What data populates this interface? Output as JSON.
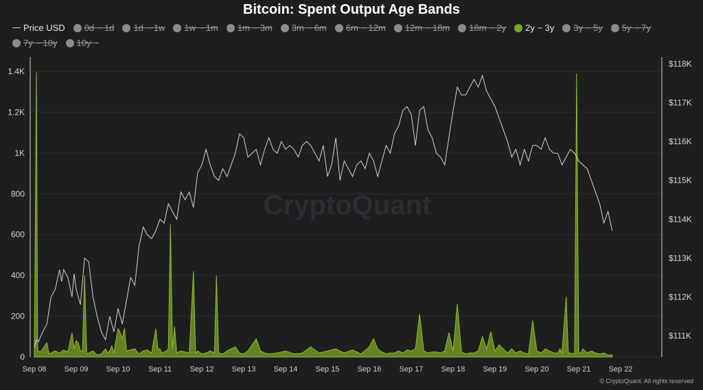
{
  "chart_data": {
    "type": "area",
    "title": "Bitcoin: Spent Output Age Bands",
    "watermark": "CryptoQuant",
    "copyright": "© CryptoQuant. All rights reserved",
    "legend_placement": "top-left",
    "legend": [
      {
        "label": "Price USD",
        "marker": "line",
        "active": true,
        "color": "#cfcfcf"
      },
      {
        "label": "0d ~ 1d",
        "marker": "dot",
        "active": false
      },
      {
        "label": "1d ~ 1w",
        "marker": "dot",
        "active": false
      },
      {
        "label": "1w ~ 1m",
        "marker": "dot",
        "active": false
      },
      {
        "label": "1m ~ 3m",
        "marker": "dot",
        "active": false
      },
      {
        "label": "3m ~ 6m",
        "marker": "dot",
        "active": false
      },
      {
        "label": "6m ~ 12m",
        "marker": "dot",
        "active": false
      },
      {
        "label": "12m ~ 18m",
        "marker": "dot",
        "active": false
      },
      {
        "label": "18m ~ 2y",
        "marker": "dot",
        "active": false
      },
      {
        "label": "2y ~ 3y",
        "marker": "dot",
        "active": true,
        "color": "#7ba428"
      },
      {
        "label": "3y ~ 5y",
        "marker": "dot",
        "active": false
      },
      {
        "label": "5y ~ 7y",
        "marker": "dot",
        "active": false
      },
      {
        "label": "7y ~ 10y",
        "marker": "dot",
        "active": false
      },
      {
        "label": "10y ~",
        "marker": "dot",
        "active": false
      }
    ],
    "x_ticks": [
      "Sep 08",
      "Sep 09",
      "Sep 10",
      "Sep 11",
      "Sep 12",
      "Sep 13",
      "Sep 14",
      "Sep 15",
      "Sep 16",
      "Sep 17",
      "Sep 18",
      "Sep 19",
      "Sep 20",
      "Sep 21",
      "Sep 22"
    ],
    "x_range_days": [
      0,
      14.1
    ],
    "y_left": {
      "range": [
        0,
        1400
      ],
      "ticks": [
        0,
        200,
        400,
        600,
        800,
        1000,
        1200,
        1400
      ],
      "tick_labels": [
        "0",
        "200",
        "400",
        "600",
        "800",
        "1K",
        "1.2K",
        "1.4K"
      ]
    },
    "y_right": {
      "range": [
        110500,
        118200
      ],
      "ticks": [
        111000,
        112000,
        113000,
        114000,
        115000,
        116000,
        117000,
        118000
      ],
      "tick_labels": [
        "$111K",
        "$112K",
        "$113K",
        "$114K",
        "$115K",
        "$116K",
        "$117K",
        "$118K"
      ]
    },
    "grid": true,
    "series": [
      {
        "name": "Price USD",
        "axis": "right",
        "color": "#d4d4d4",
        "points": [
          [
            0,
            110700
          ],
          [
            0.05,
            110900
          ],
          [
            0.1,
            110850
          ],
          [
            0.2,
            111100
          ],
          [
            0.3,
            111300
          ],
          [
            0.4,
            112000
          ],
          [
            0.5,
            112200
          ],
          [
            0.6,
            112700
          ],
          [
            0.65,
            112400
          ],
          [
            0.7,
            112700
          ],
          [
            0.8,
            112500
          ],
          [
            0.9,
            112000
          ],
          [
            0.95,
            112600
          ],
          [
            1.0,
            112200
          ],
          [
            1.1,
            111800
          ],
          [
            1.2,
            113000
          ],
          [
            1.3,
            112900
          ],
          [
            1.4,
            112000
          ],
          [
            1.5,
            111500
          ],
          [
            1.6,
            111100
          ],
          [
            1.7,
            110900
          ],
          [
            1.8,
            111500
          ],
          [
            1.9,
            111100
          ],
          [
            2.0,
            111700
          ],
          [
            2.1,
            111300
          ],
          [
            2.2,
            111900
          ],
          [
            2.3,
            112500
          ],
          [
            2.4,
            112300
          ],
          [
            2.5,
            113300
          ],
          [
            2.6,
            113800
          ],
          [
            2.7,
            113600
          ],
          [
            2.8,
            113500
          ],
          [
            2.9,
            113700
          ],
          [
            3.0,
            114000
          ],
          [
            3.1,
            113900
          ],
          [
            3.2,
            114400
          ],
          [
            3.3,
            114200
          ],
          [
            3.4,
            114000
          ],
          [
            3.5,
            114700
          ],
          [
            3.6,
            114500
          ],
          [
            3.7,
            114700
          ],
          [
            3.8,
            114300
          ],
          [
            3.9,
            115200
          ],
          [
            4.0,
            115400
          ],
          [
            4.1,
            115800
          ],
          [
            4.2,
            115400
          ],
          [
            4.3,
            115100
          ],
          [
            4.4,
            115000
          ],
          [
            4.5,
            115300
          ],
          [
            4.6,
            115100
          ],
          [
            4.7,
            115400
          ],
          [
            4.8,
            115700
          ],
          [
            4.9,
            116200
          ],
          [
            5.0,
            116100
          ],
          [
            5.1,
            115600
          ],
          [
            5.2,
            115700
          ],
          [
            5.3,
            115800
          ],
          [
            5.4,
            115400
          ],
          [
            5.5,
            115800
          ],
          [
            5.6,
            116100
          ],
          [
            5.7,
            115800
          ],
          [
            5.8,
            115700
          ],
          [
            5.9,
            116000
          ],
          [
            6.0,
            115800
          ],
          [
            6.1,
            115900
          ],
          [
            6.2,
            115800
          ],
          [
            6.3,
            115600
          ],
          [
            6.4,
            115900
          ],
          [
            6.5,
            116000
          ],
          [
            6.6,
            115900
          ],
          [
            6.7,
            115700
          ],
          [
            6.8,
            115500
          ],
          [
            6.9,
            115900
          ],
          [
            7.0,
            115100
          ],
          [
            7.1,
            115400
          ],
          [
            7.2,
            116100
          ],
          [
            7.3,
            115000
          ],
          [
            7.4,
            115500
          ],
          [
            7.5,
            115300
          ],
          [
            7.6,
            115100
          ],
          [
            7.7,
            115400
          ],
          [
            7.8,
            115500
          ],
          [
            7.9,
            115300
          ],
          [
            8.0,
            115700
          ],
          [
            8.1,
            115500
          ],
          [
            8.2,
            115100
          ],
          [
            8.3,
            115500
          ],
          [
            8.4,
            115900
          ],
          [
            8.5,
            115700
          ],
          [
            8.6,
            116200
          ],
          [
            8.7,
            116400
          ],
          [
            8.8,
            116800
          ],
          [
            8.9,
            116900
          ],
          [
            9.0,
            116700
          ],
          [
            9.1,
            115900
          ],
          [
            9.2,
            116800
          ],
          [
            9.3,
            116900
          ],
          [
            9.4,
            116300
          ],
          [
            9.5,
            116100
          ],
          [
            9.6,
            115700
          ],
          [
            9.7,
            115600
          ],
          [
            9.8,
            115400
          ],
          [
            9.9,
            116100
          ],
          [
            10.0,
            116800
          ],
          [
            10.1,
            117400
          ],
          [
            10.2,
            117200
          ],
          [
            10.3,
            117200
          ],
          [
            10.4,
            117400
          ],
          [
            10.5,
            117600
          ],
          [
            10.6,
            117400
          ],
          [
            10.7,
            117700
          ],
          [
            10.8,
            117300
          ],
          [
            10.9,
            117100
          ],
          [
            11.0,
            116900
          ],
          [
            11.1,
            116600
          ],
          [
            11.2,
            116300
          ],
          [
            11.3,
            116000
          ],
          [
            11.4,
            115600
          ],
          [
            11.5,
            115800
          ],
          [
            11.6,
            115400
          ],
          [
            11.7,
            115800
          ],
          [
            11.8,
            115500
          ],
          [
            11.9,
            115900
          ],
          [
            12.0,
            115900
          ],
          [
            12.1,
            115800
          ],
          [
            12.2,
            116100
          ],
          [
            12.3,
            115800
          ],
          [
            12.4,
            115700
          ],
          [
            12.5,
            115700
          ],
          [
            12.6,
            115400
          ],
          [
            12.7,
            115600
          ],
          [
            12.8,
            115800
          ],
          [
            12.9,
            115700
          ],
          [
            13.0,
            115500
          ],
          [
            13.1,
            115400
          ],
          [
            13.2,
            115300
          ],
          [
            13.3,
            115000
          ],
          [
            13.4,
            114700
          ],
          [
            13.5,
            114400
          ],
          [
            13.6,
            113900
          ],
          [
            13.7,
            114200
          ],
          [
            13.8,
            113700
          ]
        ]
      },
      {
        "name": "2y ~ 3y",
        "axis": "left",
        "color": "#7ba428",
        "points": [
          [
            0.0,
            20
          ],
          [
            0.05,
            1395
          ],
          [
            0.08,
            30
          ],
          [
            0.15,
            25
          ],
          [
            0.3,
            70
          ],
          [
            0.35,
            15
          ],
          [
            0.5,
            30
          ],
          [
            0.6,
            20
          ],
          [
            0.7,
            35
          ],
          [
            0.8,
            25
          ],
          [
            0.9,
            120
          ],
          [
            0.95,
            40
          ],
          [
            1.0,
            80
          ],
          [
            1.05,
            70
          ],
          [
            1.1,
            30
          ],
          [
            1.15,
            30
          ],
          [
            1.2,
            400
          ],
          [
            1.25,
            15
          ],
          [
            1.4,
            30
          ],
          [
            1.5,
            10
          ],
          [
            1.6,
            15
          ],
          [
            1.7,
            40
          ],
          [
            1.75,
            20
          ],
          [
            1.8,
            30
          ],
          [
            1.85,
            55
          ],
          [
            1.9,
            20
          ],
          [
            1.95,
            80
          ],
          [
            2.0,
            140
          ],
          [
            2.05,
            120
          ],
          [
            2.1,
            90
          ],
          [
            2.15,
            140
          ],
          [
            2.2,
            30
          ],
          [
            2.4,
            40
          ],
          [
            2.5,
            15
          ],
          [
            2.6,
            30
          ],
          [
            2.7,
            35
          ],
          [
            2.8,
            20
          ],
          [
            2.9,
            140
          ],
          [
            2.95,
            40
          ],
          [
            3.0,
            40
          ],
          [
            3.05,
            20
          ],
          [
            3.15,
            30
          ],
          [
            3.2,
            40
          ],
          [
            3.25,
            650
          ],
          [
            3.3,
            40
          ],
          [
            3.35,
            150
          ],
          [
            3.4,
            20
          ],
          [
            3.5,
            30
          ],
          [
            3.7,
            20
          ],
          [
            3.8,
            420
          ],
          [
            3.85,
            20
          ],
          [
            3.9,
            30
          ],
          [
            4.0,
            15
          ],
          [
            4.1,
            20
          ],
          [
            4.2,
            30
          ],
          [
            4.3,
            20
          ],
          [
            4.35,
            400
          ],
          [
            4.4,
            20
          ],
          [
            4.5,
            15
          ],
          [
            4.6,
            30
          ],
          [
            4.7,
            40
          ],
          [
            4.8,
            50
          ],
          [
            4.9,
            20
          ],
          [
            5.0,
            15
          ],
          [
            5.1,
            30
          ],
          [
            5.2,
            60
          ],
          [
            5.3,
            90
          ],
          [
            5.4,
            30
          ],
          [
            5.5,
            20
          ],
          [
            5.6,
            15
          ],
          [
            5.8,
            20
          ],
          [
            6.0,
            30
          ],
          [
            6.2,
            15
          ],
          [
            6.4,
            20
          ],
          [
            6.6,
            50
          ],
          [
            6.8,
            20
          ],
          [
            7.0,
            30
          ],
          [
            7.2,
            40
          ],
          [
            7.4,
            20
          ],
          [
            7.6,
            35
          ],
          [
            7.8,
            15
          ],
          [
            8.0,
            50
          ],
          [
            8.1,
            90
          ],
          [
            8.2,
            40
          ],
          [
            8.3,
            25
          ],
          [
            8.4,
            15
          ],
          [
            8.5,
            20
          ],
          [
            8.6,
            20
          ],
          [
            8.7,
            30
          ],
          [
            8.8,
            20
          ],
          [
            8.9,
            35
          ],
          [
            9.0,
            30
          ],
          [
            9.1,
            40
          ],
          [
            9.2,
            210
          ],
          [
            9.3,
            30
          ],
          [
            9.4,
            20
          ],
          [
            9.5,
            25
          ],
          [
            9.6,
            25
          ],
          [
            9.7,
            20
          ],
          [
            9.8,
            30
          ],
          [
            9.9,
            120
          ],
          [
            10.0,
            30
          ],
          [
            10.1,
            260
          ],
          [
            10.2,
            25
          ],
          [
            10.3,
            15
          ],
          [
            10.4,
            20
          ],
          [
            10.5,
            20
          ],
          [
            10.6,
            30
          ],
          [
            10.7,
            100
          ],
          [
            10.8,
            40
          ],
          [
            10.9,
            125
          ],
          [
            11.0,
            30
          ],
          [
            11.1,
            60
          ],
          [
            11.2,
            40
          ],
          [
            11.3,
            20
          ],
          [
            11.4,
            40
          ],
          [
            11.5,
            20
          ],
          [
            11.6,
            30
          ],
          [
            11.7,
            20
          ],
          [
            11.8,
            15
          ],
          [
            11.9,
            180
          ],
          [
            12.0,
            30
          ],
          [
            12.1,
            20
          ],
          [
            12.2,
            40
          ],
          [
            12.3,
            30
          ],
          [
            12.4,
            20
          ],
          [
            12.5,
            20
          ],
          [
            12.55,
            40
          ],
          [
            12.6,
            20
          ],
          [
            12.7,
            295
          ],
          [
            12.75,
            20
          ],
          [
            12.8,
            20
          ],
          [
            12.9,
            15
          ],
          [
            12.95,
            1390
          ],
          [
            13.0,
            20
          ],
          [
            13.05,
            20
          ],
          [
            13.1,
            40
          ],
          [
            13.2,
            20
          ],
          [
            13.3,
            30
          ],
          [
            13.4,
            20
          ],
          [
            13.5,
            15
          ],
          [
            13.6,
            20
          ],
          [
            13.7,
            10
          ],
          [
            13.8,
            10
          ]
        ]
      }
    ]
  }
}
